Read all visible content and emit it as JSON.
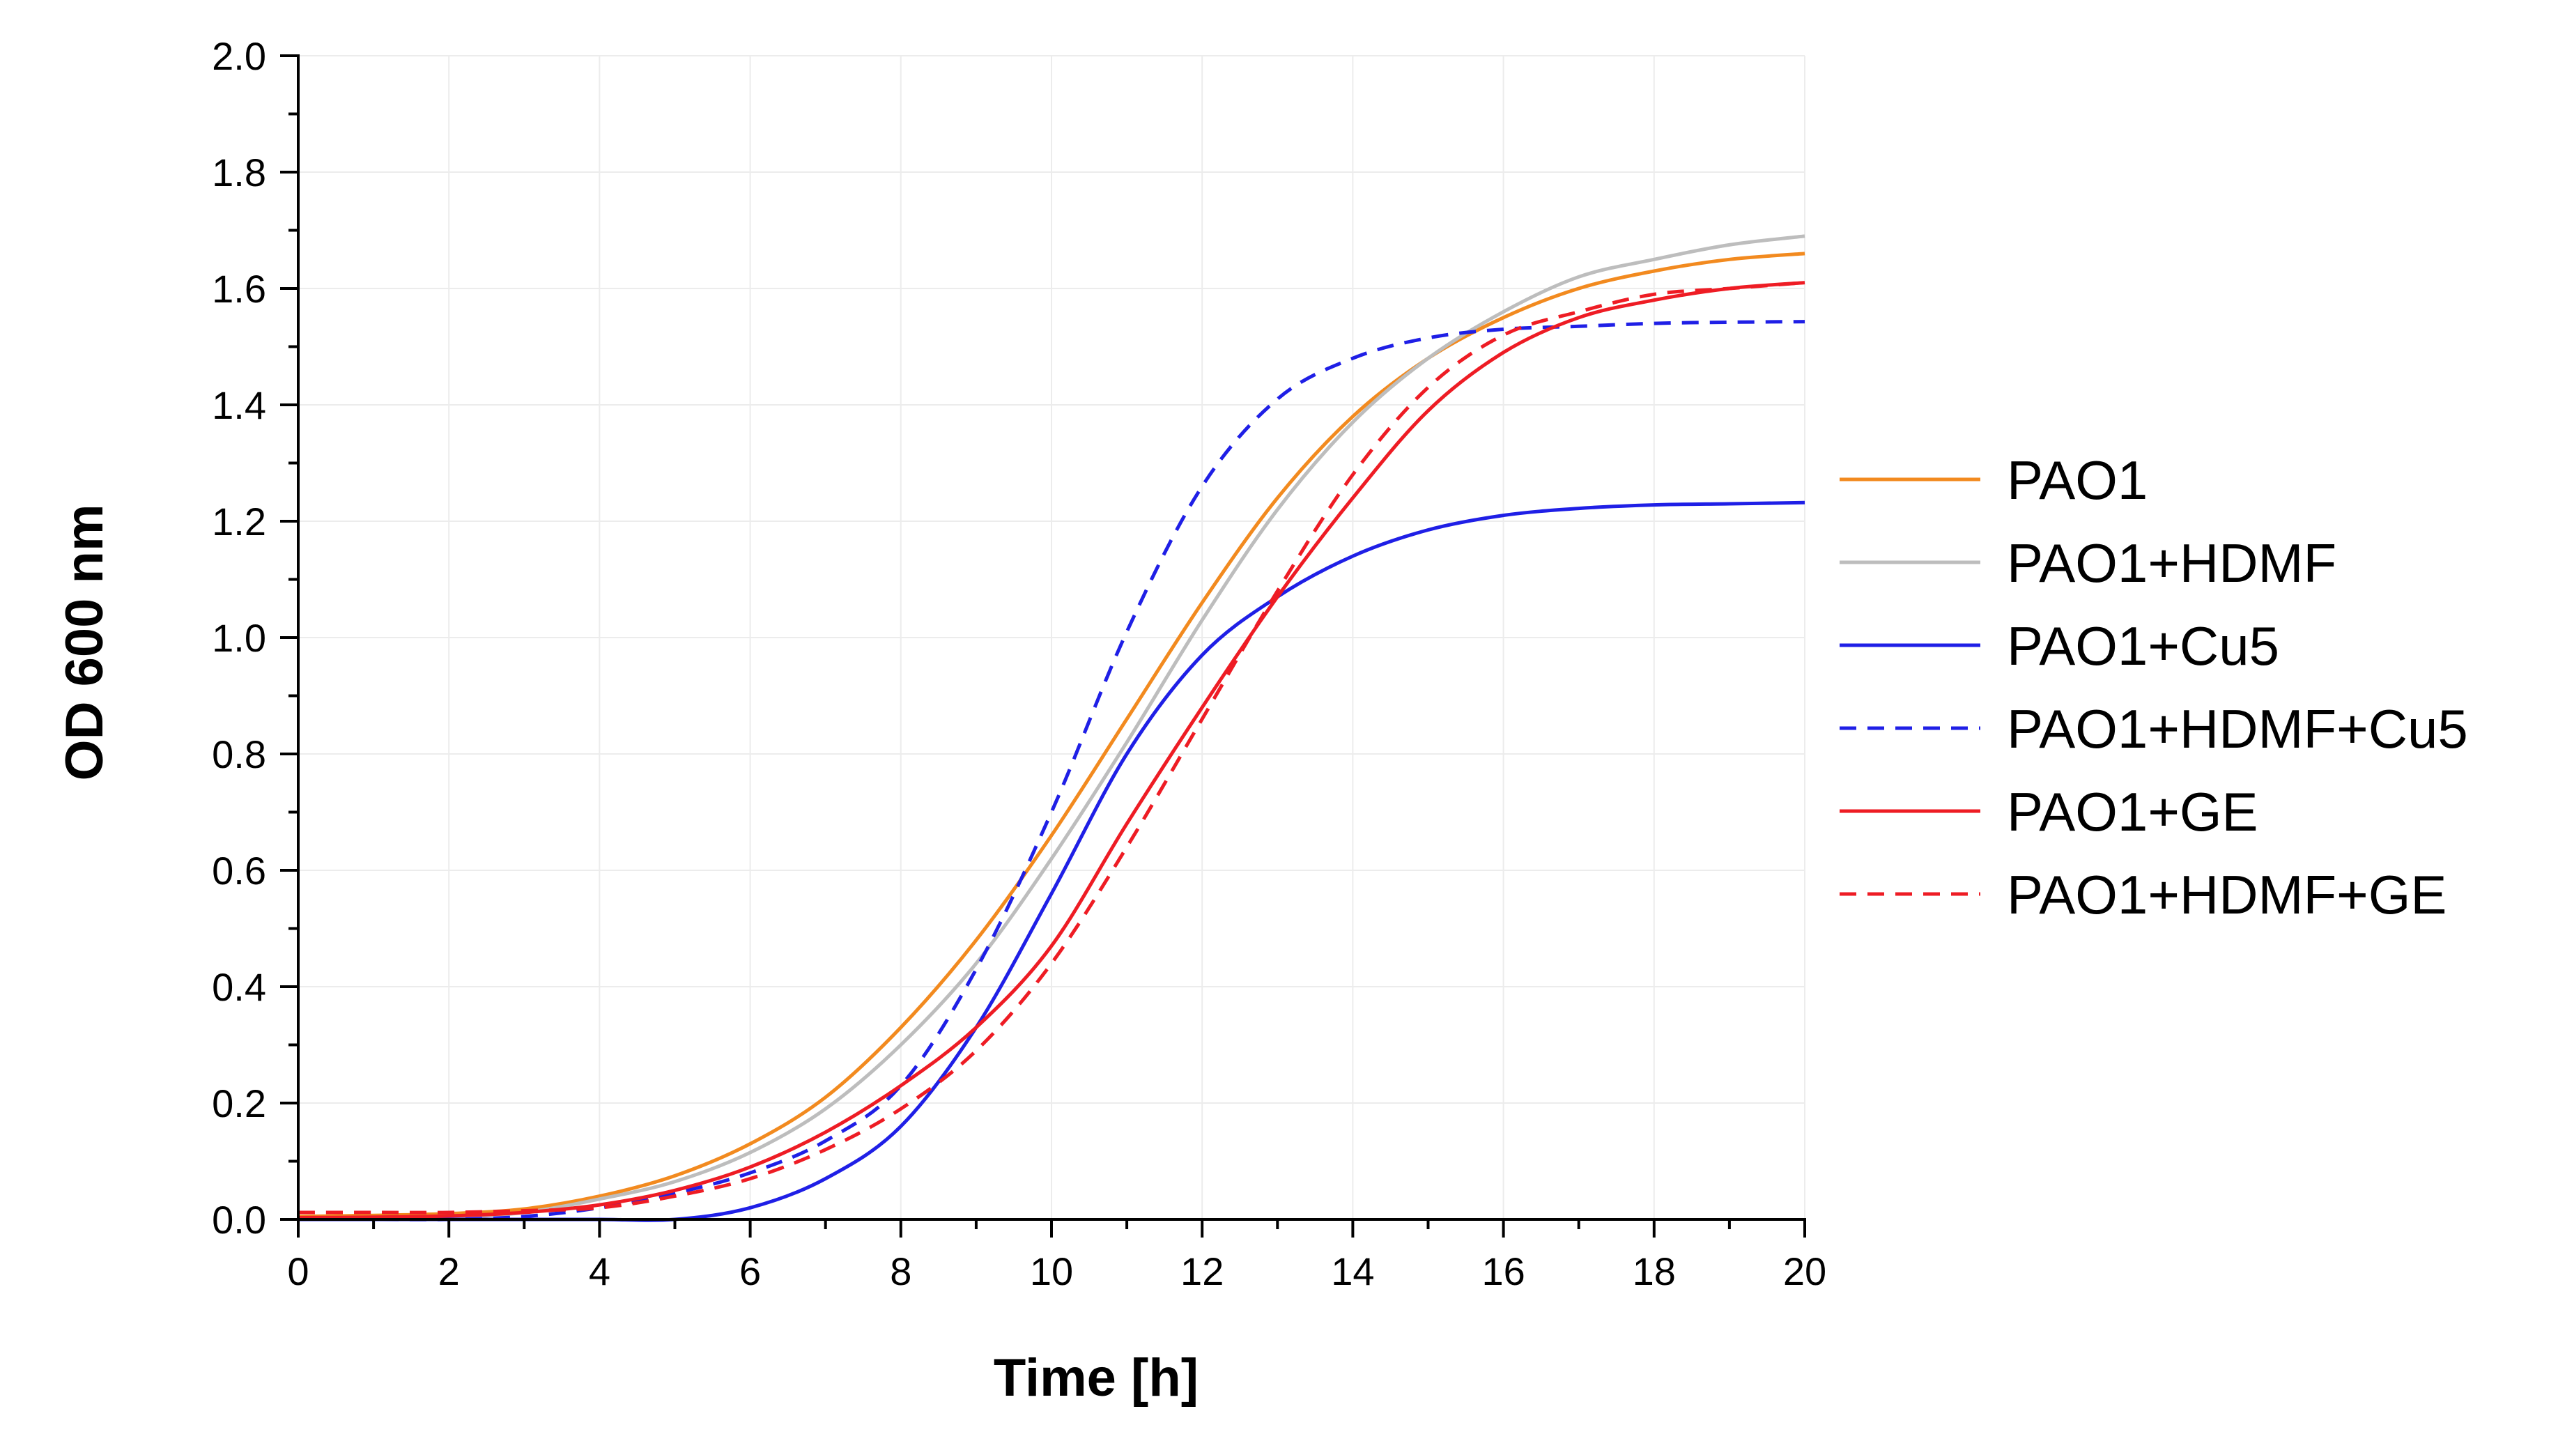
{
  "chart_data": {
    "type": "line",
    "title": "",
    "xlabel": "Time [h]",
    "ylabel": "OD 600 nm",
    "xlim": [
      0,
      20
    ],
    "ylim": [
      0,
      2.0
    ],
    "grid": true,
    "legend_position": "right",
    "x_ticks": [
      0,
      2,
      4,
      6,
      8,
      10,
      12,
      14,
      16,
      18,
      20
    ],
    "x_tick_labels": [
      "0",
      "2",
      "4",
      "6",
      "8",
      "10",
      "12",
      "14",
      "16",
      "18",
      "20"
    ],
    "y_ticks": [
      0.0,
      0.2,
      0.4,
      0.6,
      0.8,
      1.0,
      1.2,
      1.4,
      1.6,
      1.8,
      2.0
    ],
    "y_tick_labels": [
      "0.0",
      "0.2",
      "0.4",
      "0.6",
      "0.8",
      "1.0",
      "1.2",
      "1.4",
      "1.6",
      "1.8",
      "2.0"
    ],
    "x": [
      0,
      1,
      2,
      3,
      4,
      5,
      6,
      7,
      8,
      9,
      10,
      11,
      12,
      13,
      14,
      15,
      16,
      17,
      18,
      19,
      20
    ],
    "series": [
      {
        "name": "PAO1",
        "color": "#f28a1f",
        "dash": "solid",
        "values": [
          0.005,
          0.007,
          0.01,
          0.018,
          0.04,
          0.075,
          0.13,
          0.21,
          0.33,
          0.48,
          0.66,
          0.86,
          1.06,
          1.24,
          1.38,
          1.48,
          1.55,
          1.6,
          1.63,
          1.65,
          1.66
        ]
      },
      {
        "name": "PAO1+HDMF",
        "color": "#bdbdbd",
        "dash": "solid",
        "values": [
          0.0,
          0.001,
          0.003,
          0.012,
          0.035,
          0.065,
          0.115,
          0.19,
          0.3,
          0.44,
          0.62,
          0.82,
          1.03,
          1.22,
          1.37,
          1.48,
          1.56,
          1.62,
          1.65,
          1.675,
          1.69
        ]
      },
      {
        "name": "PAO1+Cu5",
        "color": "#1f1fe6",
        "dash": "solid",
        "values": [
          0.0,
          0.0,
          0.0,
          0.0,
          0.0,
          0.0,
          0.02,
          0.07,
          0.16,
          0.33,
          0.56,
          0.8,
          0.97,
          1.07,
          1.14,
          1.185,
          1.21,
          1.222,
          1.228,
          1.23,
          1.232
        ]
      },
      {
        "name": "PAO1+HDMF+Cu5",
        "color": "#1f1fe6",
        "dash": "dashed",
        "values": [
          0.0,
          0.0,
          0.0,
          0.005,
          0.02,
          0.045,
          0.08,
          0.135,
          0.23,
          0.43,
          0.7,
          1.01,
          1.26,
          1.41,
          1.48,
          1.515,
          1.53,
          1.535,
          1.54,
          1.542,
          1.543
        ]
      },
      {
        "name": "PAO1+GE",
        "color": "#ee1c24",
        "dash": "solid",
        "values": [
          0.003,
          0.004,
          0.006,
          0.012,
          0.025,
          0.05,
          0.09,
          0.15,
          0.23,
          0.33,
          0.47,
          0.68,
          0.88,
          1.07,
          1.24,
          1.39,
          1.49,
          1.55,
          1.58,
          1.6,
          1.61
        ]
      },
      {
        "name": "PAO1+HDMF+GE",
        "color": "#ee1c24",
        "dash": "dashed",
        "values": [
          0.012,
          0.012,
          0.012,
          0.015,
          0.02,
          0.04,
          0.07,
          0.12,
          0.19,
          0.29,
          0.44,
          0.64,
          0.86,
          1.08,
          1.28,
          1.43,
          1.52,
          1.56,
          1.59,
          1.6,
          1.61
        ]
      }
    ]
  }
}
